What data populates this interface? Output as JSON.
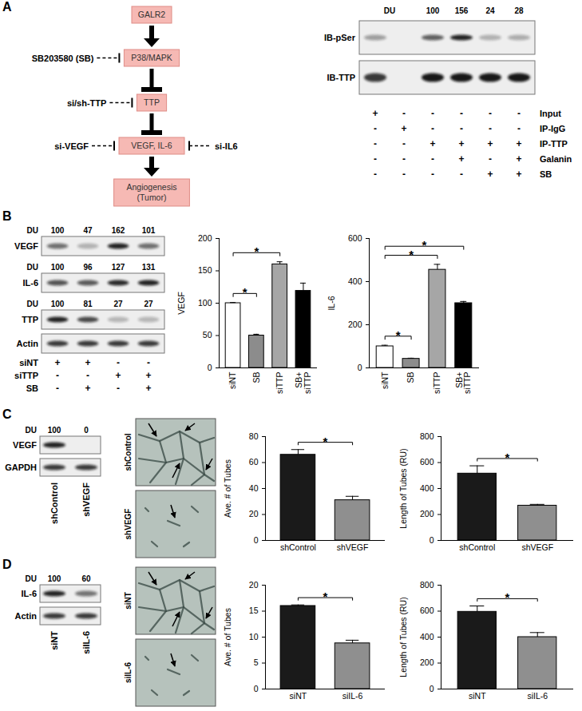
{
  "figure": {
    "panels": [
      "A",
      "B",
      "C",
      "D"
    ],
    "pathway": {
      "nodes": [
        {
          "label": "GALR2"
        },
        {
          "label": "P38/MAPK"
        },
        {
          "label": "TTP"
        },
        {
          "label": "VEGF, IL-6"
        },
        {
          "label": "Angiogenesis\n(Tumor)"
        }
      ],
      "edges": [
        {
          "from": 0,
          "to": 1,
          "kind": "activate"
        },
        {
          "from": 1,
          "to": 2,
          "kind": "inhibit"
        },
        {
          "from": 2,
          "to": 3,
          "kind": "inhibit"
        },
        {
          "from": 3,
          "to": 4,
          "kind": "activate"
        }
      ],
      "inhibitors": [
        {
          "label": "SB203580 (SB)",
          "target": 1,
          "side": "left"
        },
        {
          "label": "si/sh-TTP",
          "target": 2,
          "side": "left"
        },
        {
          "label": "si-VEGF",
          "target": 3,
          "side": "left"
        },
        {
          "label": "si-IL6",
          "target": 3,
          "side": "right"
        }
      ]
    },
    "blots": [
      {
        "du_label": "DU",
        "du": [
          null,
          null,
          100,
          156,
          24,
          28
        ],
        "rows": [
          "IB-pSer",
          "IB-TTP"
        ],
        "conditions": [
          {
            "name": "Input",
            "marks": [
              "+",
              "-",
              "-",
              "-",
              "-",
              "-"
            ]
          },
          {
            "name": "IP-IgG",
            "marks": [
              "-",
              "+",
              "-",
              "-",
              "-",
              "-"
            ]
          },
          {
            "name": "IP-TTP",
            "marks": [
              "-",
              "-",
              "+",
              "+",
              "+",
              "+"
            ]
          },
          {
            "name": "Galanin",
            "marks": [
              "-",
              "-",
              "-",
              "+",
              "-",
              "+"
            ]
          },
          {
            "name": "SB",
            "marks": [
              "-",
              "-",
              "-",
              "-",
              "+",
              "+"
            ]
          }
        ]
      },
      {
        "du_label": "DU",
        "rows": [
          {
            "name": "VEGF",
            "du": [
              100,
              47,
              162,
              101
            ]
          },
          {
            "name": "IL-6",
            "du": [
              100,
              96,
              127,
              131
            ]
          },
          {
            "name": "TTP",
            "du": [
              100,
              81,
              27,
              27
            ]
          },
          {
            "name": "Actin"
          }
        ],
        "conditions": [
          {
            "name": "siNT",
            "marks": [
              "+",
              "+",
              "-",
              "-"
            ]
          },
          {
            "name": "siTTP",
            "marks": [
              "-",
              "-",
              "+",
              "+"
            ]
          },
          {
            "name": "SB",
            "marks": [
              "-",
              "+",
              "-",
              "+"
            ]
          }
        ]
      },
      {
        "du_label": "DU",
        "rows": [
          {
            "name": "VEGF",
            "du": [
              100,
              0
            ]
          },
          {
            "name": "GAPDH"
          }
        ],
        "lanes": [
          "shControl",
          "shVEGF"
        ]
      },
      {
        "du_label": "DU",
        "rows": [
          {
            "name": "IL-6",
            "du": [
              100,
              60
            ]
          },
          {
            "name": "Actin"
          }
        ],
        "lanes": [
          "siNT",
          "siIL-6"
        ]
      }
    ],
    "images": [
      {
        "labels": [
          "shControl",
          "shVEGF"
        ]
      },
      {
        "labels": [
          "siNT",
          "siIL-6"
        ]
      }
    ]
  },
  "chart_data": [
    {
      "type": "bar",
      "ylabel": "VEGF",
      "categories": [
        "siNT",
        "SB",
        "siTTP",
        "SB+\nsiTTP"
      ],
      "values": [
        100,
        50,
        160,
        119
      ],
      "errors": [
        1,
        2,
        4,
        12
      ],
      "colors": [
        "#ffffff",
        "#8c8c8c",
        "#a6a6a6",
        "#000000"
      ],
      "ylim": [
        0,
        200
      ],
      "yticks": [
        0,
        50,
        100,
        150,
        200
      ],
      "significance": [
        {
          "from": 0,
          "to": 1,
          "label": "*"
        },
        {
          "from": 0,
          "to": 2,
          "label": "*"
        }
      ]
    },
    {
      "type": "bar",
      "ylabel": "IL-6",
      "categories": [
        "siNT",
        "SB",
        "siTTP",
        "SB+\nsiTTP"
      ],
      "values": [
        100,
        42,
        455,
        300
      ],
      "errors": [
        5,
        3,
        25,
        8
      ],
      "colors": [
        "#ffffff",
        "#8c8c8c",
        "#a6a6a6",
        "#000000"
      ],
      "ylim": [
        0,
        600
      ],
      "yticks": [
        0,
        200,
        400,
        600
      ],
      "significance": [
        {
          "from": 0,
          "to": 1,
          "label": "*"
        },
        {
          "from": 0,
          "to": 2,
          "label": "*"
        },
        {
          "from": 0,
          "to": 3,
          "label": "*"
        }
      ]
    },
    {
      "type": "bar",
      "ylabel": "Ave. # of Tubes",
      "categories": [
        "shControl",
        "shVEGF"
      ],
      "values": [
        66,
        31
      ],
      "errors": [
        4,
        3
      ],
      "colors": [
        "#1a1a1a",
        "#8f8f8f"
      ],
      "ylim": [
        0,
        80
      ],
      "yticks": [
        0,
        20,
        40,
        60,
        80
      ],
      "significance": [
        {
          "from": 0,
          "to": 1,
          "label": "*"
        }
      ]
    },
    {
      "type": "bar",
      "ylabel": "Length of Tubes (RU)",
      "categories": [
        "shControl",
        "shVEGF"
      ],
      "values": [
        515,
        268
      ],
      "errors": [
        60,
        10
      ],
      "colors": [
        "#1a1a1a",
        "#8f8f8f"
      ],
      "ylim": [
        0,
        800
      ],
      "yticks": [
        0,
        200,
        400,
        600,
        800
      ],
      "significance": [
        {
          "from": 0,
          "to": 1,
          "label": "*"
        }
      ]
    },
    {
      "type": "bar",
      "ylabel": "Ave. # of Tubes",
      "categories": [
        "siNT",
        "siIL-6"
      ],
      "values": [
        16,
        8.8
      ],
      "errors": [
        0.2,
        0.6
      ],
      "colors": [
        "#1a1a1a",
        "#8f8f8f"
      ],
      "ylim": [
        0,
        20
      ],
      "yticks": [
        0,
        5,
        10,
        15,
        20
      ],
      "significance": [
        {
          "from": 0,
          "to": 1,
          "label": "*"
        }
      ]
    },
    {
      "type": "bar",
      "ylabel": "Length of Tubes (RU)",
      "categories": [
        "siNT",
        "siIL-6"
      ],
      "values": [
        595,
        400
      ],
      "errors": [
        45,
        35
      ],
      "colors": [
        "#1a1a1a",
        "#8f8f8f"
      ],
      "ylim": [
        0,
        800
      ],
      "yticks": [
        0,
        200,
        400,
        600,
        800
      ],
      "significance": [
        {
          "from": 0,
          "to": 1,
          "label": "*"
        }
      ]
    }
  ]
}
